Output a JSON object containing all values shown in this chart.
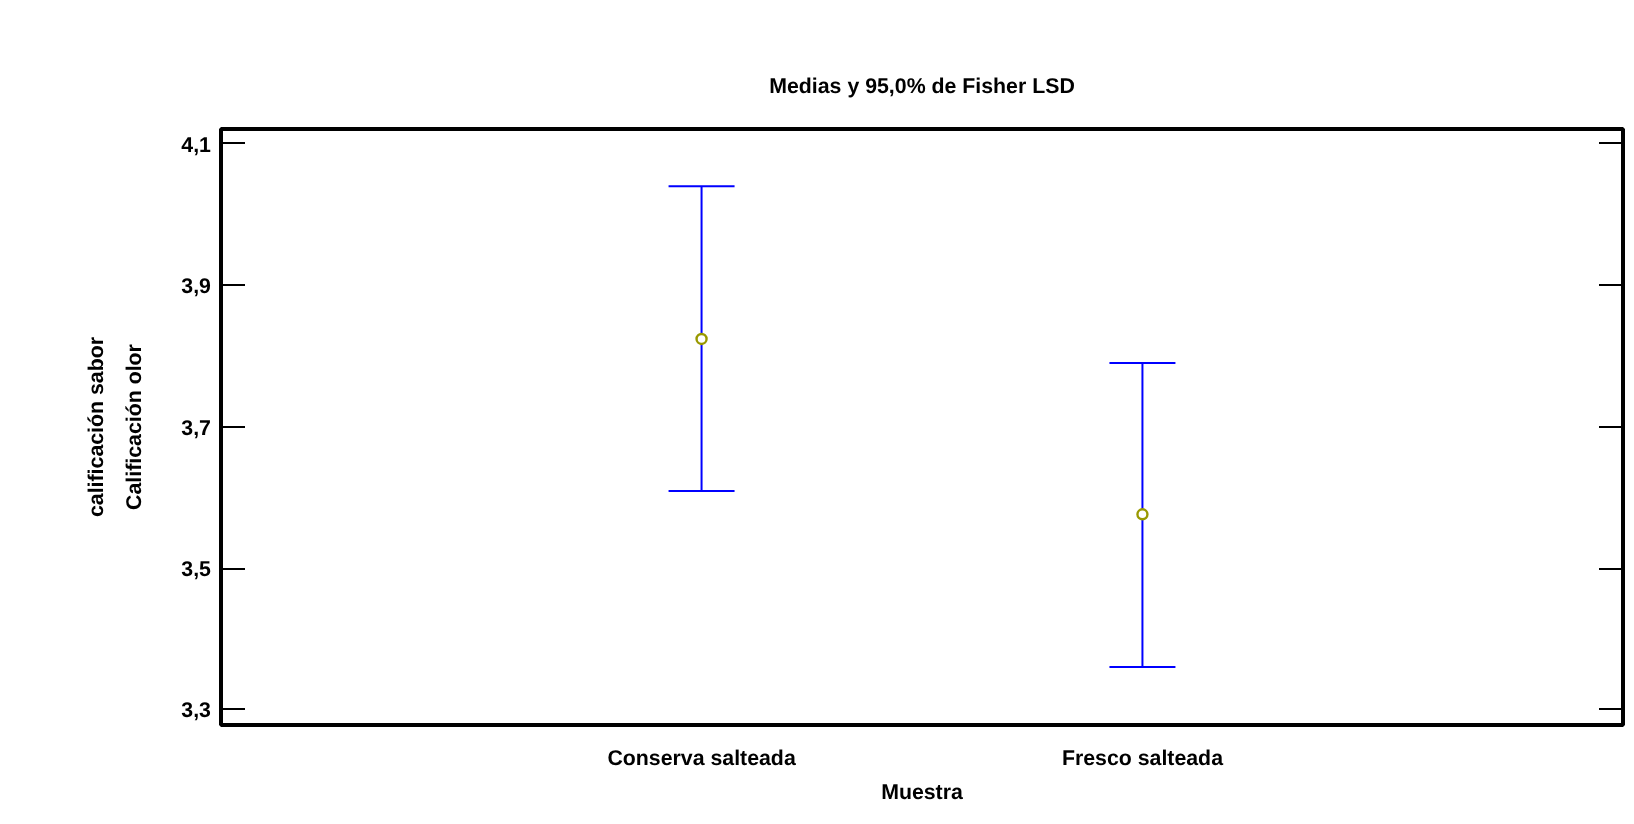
{
  "chart_data": {
    "type": "scatter",
    "title": "Medias y 95,0% de Fisher LSD",
    "xlabel": "Muestra",
    "ylabel": "Calificación olor",
    "annotations": [
      "calificación sabor"
    ],
    "categories": [
      "Conserva salteada",
      "Fresco salteada"
    ],
    "series": [
      {
        "color": "#999900",
        "values": [
          3.824,
          3.576
        ],
        "errors": [
          [
            3.609,
            4.04
          ],
          [
            3.36,
            3.79
          ]
        ]
      }
    ],
    "ylim": [
      3.278,
      4.121
    ],
    "yticks": [
      {
        "value": 3.3,
        "label": "3,3"
      },
      {
        "value": 3.5,
        "label": "3,5"
      },
      {
        "value": 3.7,
        "label": "3,7"
      },
      {
        "value": 3.9,
        "label": "3,9"
      },
      {
        "value": 4.1,
        "label": "4,1"
      }
    ],
    "marker": "circle",
    "grid": false
  }
}
